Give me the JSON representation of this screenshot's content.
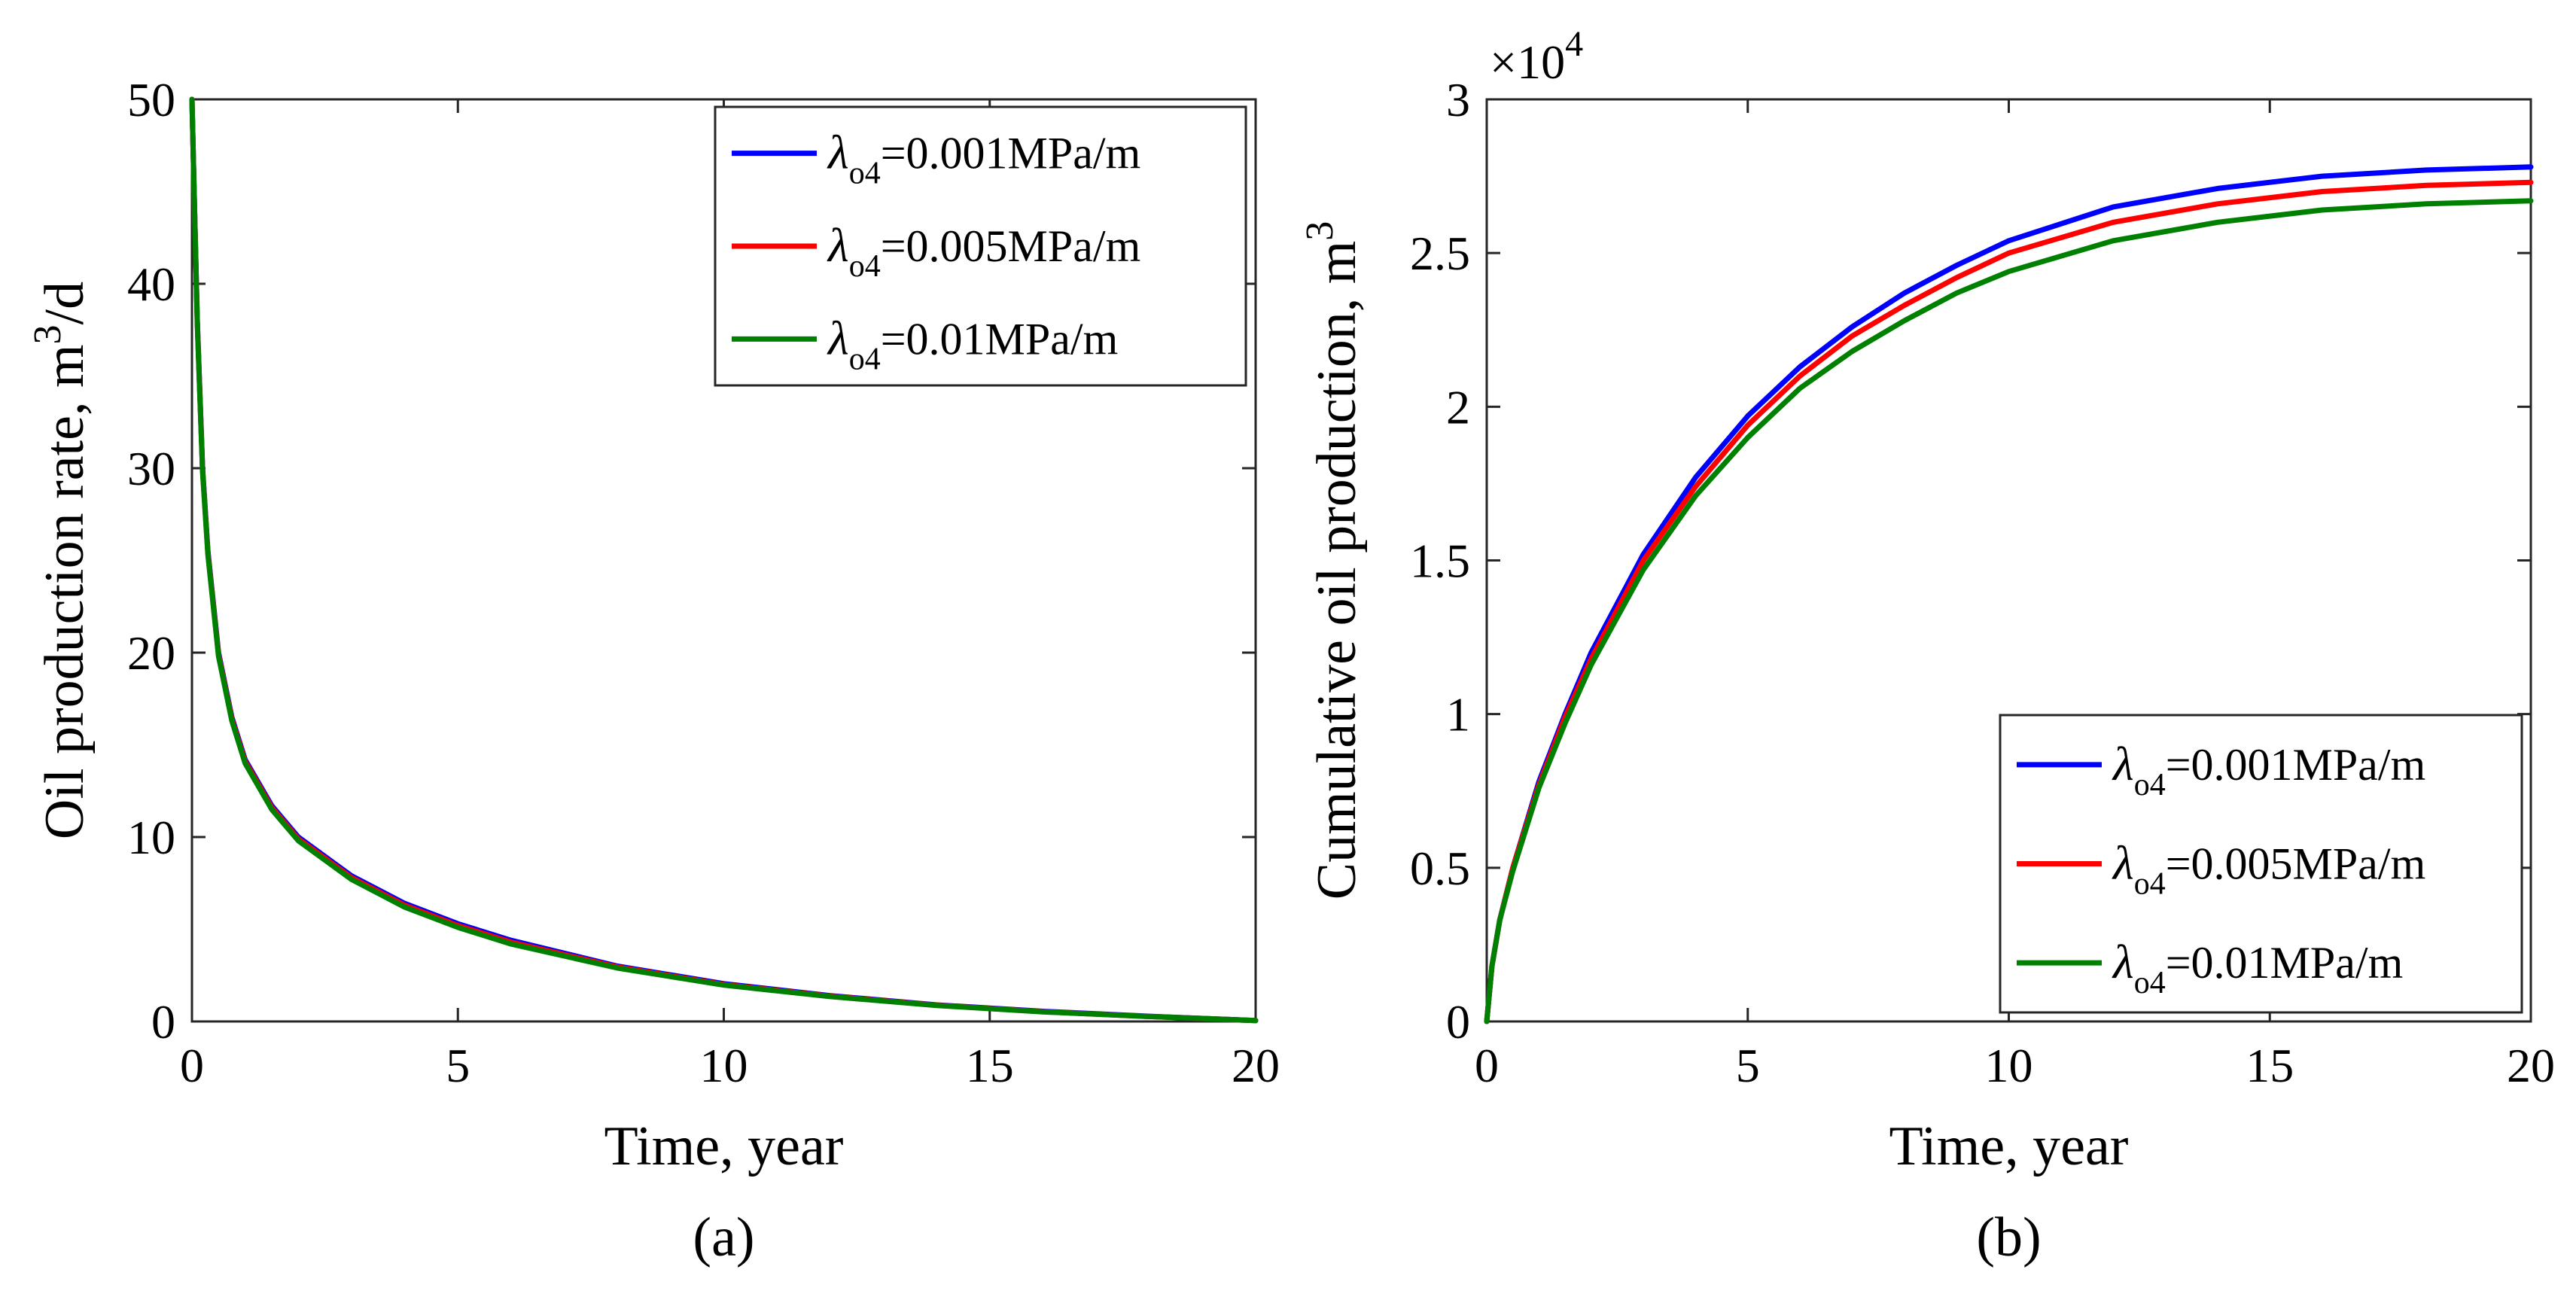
{
  "chart_data": [
    {
      "type": "line",
      "panel_label": "(a)",
      "xlabel": "Time, year",
      "ylabel_text": "Oil production rate, m",
      "ylabel_sup": "3",
      "ylabel_suffix": "/d",
      "xlim": [
        0,
        20
      ],
      "ylim": [
        0,
        50
      ],
      "xticks": [
        "0",
        "5",
        "10",
        "15",
        "20"
      ],
      "yticks": [
        "0",
        "10",
        "20",
        "30",
        "40",
        "50"
      ],
      "legend_position": "top-right",
      "x": [
        0,
        0.05,
        0.1,
        0.2,
        0.3,
        0.5,
        0.75,
        1,
        1.5,
        2,
        3,
        4,
        5,
        6,
        8,
        10,
        12,
        14,
        16,
        18,
        20
      ],
      "series": [
        {
          "name": "λo4=0.001MPa/m",
          "greek": "λ",
          "sub": "o4",
          "value_text": "=0.001MPa/m",
          "color": "#0000ff",
          "values": [
            50,
            44,
            38,
            30,
            25.5,
            20,
            16.5,
            14.2,
            11.7,
            10.0,
            7.9,
            6.4,
            5.3,
            4.4,
            3.0,
            2.05,
            1.4,
            0.9,
            0.55,
            0.28,
            0.05
          ]
        },
        {
          "name": "λo4=0.005MPa/m",
          "greek": "λ",
          "sub": "o4",
          "value_text": "=0.005MPa/m",
          "color": "#ff0000",
          "values": [
            50,
            43.9,
            37.9,
            29.9,
            25.4,
            19.9,
            16.4,
            14.1,
            11.6,
            9.9,
            7.8,
            6.3,
            5.2,
            4.3,
            2.95,
            2.0,
            1.37,
            0.88,
            0.53,
            0.27,
            0.05
          ]
        },
        {
          "name": "λo4=0.01MPa/m",
          "greek": "λ",
          "sub": "o4",
          "value_text": "=0.01MPa/m",
          "color": "#008000",
          "values": [
            50,
            43.8,
            37.8,
            29.8,
            25.3,
            19.8,
            16.3,
            14.0,
            11.5,
            9.8,
            7.7,
            6.2,
            5.1,
            4.2,
            2.9,
            1.97,
            1.35,
            0.87,
            0.52,
            0.27,
            0.05
          ]
        }
      ]
    },
    {
      "type": "line",
      "panel_label": "(b)",
      "xlabel": "Time, year",
      "ylabel_text": "Cumulative oil production, m",
      "ylabel_sup": "3",
      "ylabel_suffix": "",
      "multiplier_base": "×10",
      "multiplier_exp": "4",
      "xlim": [
        0,
        20
      ],
      "ylim": [
        0,
        3
      ],
      "xticks": [
        "0",
        "5",
        "10",
        "15",
        "20"
      ],
      "yticks": [
        "0",
        "0.5",
        "1",
        "1.5",
        "2",
        "2.5",
        "3"
      ],
      "legend_position": "bottom-right",
      "x": [
        0,
        0.1,
        0.25,
        0.5,
        1,
        1.5,
        2,
        3,
        4,
        5,
        6,
        7,
        8,
        9,
        10,
        12,
        14,
        16,
        18,
        20
      ],
      "series": [
        {
          "name": "λo4=0.001MPa/m",
          "greek": "λ",
          "sub": "o4",
          "value_text": "=0.001MPa/m",
          "color": "#0000ff",
          "values": [
            0,
            0.18,
            0.33,
            0.5,
            0.78,
            1.0,
            1.2,
            1.52,
            1.77,
            1.97,
            2.13,
            2.26,
            2.37,
            2.46,
            2.54,
            2.65,
            2.71,
            2.75,
            2.77,
            2.78
          ]
        },
        {
          "name": "λo4=0.005MPa/m",
          "greek": "λ",
          "sub": "o4",
          "value_text": "=0.005MPa/m",
          "color": "#ff0000",
          "values": [
            0,
            0.18,
            0.33,
            0.5,
            0.77,
            0.99,
            1.18,
            1.5,
            1.74,
            1.94,
            2.1,
            2.23,
            2.33,
            2.42,
            2.5,
            2.6,
            2.66,
            2.7,
            2.72,
            2.73
          ]
        },
        {
          "name": "λo4=0.01MPa/m",
          "greek": "λ",
          "sub": "o4",
          "value_text": "=0.01MPa/m",
          "color": "#008000",
          "values": [
            0,
            0.18,
            0.33,
            0.49,
            0.76,
            0.97,
            1.16,
            1.47,
            1.71,
            1.9,
            2.06,
            2.18,
            2.28,
            2.37,
            2.44,
            2.54,
            2.6,
            2.64,
            2.66,
            2.67
          ]
        }
      ]
    }
  ]
}
